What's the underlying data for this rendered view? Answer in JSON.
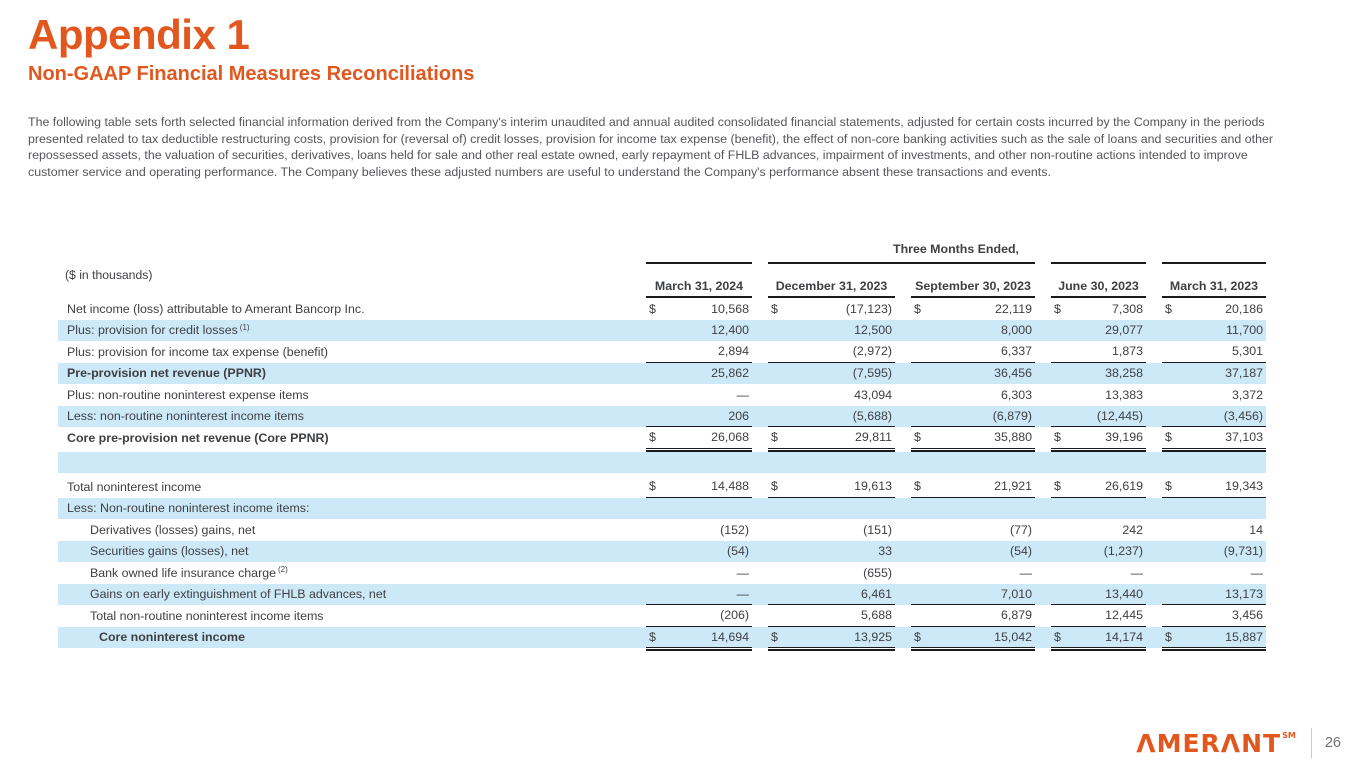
{
  "page": {
    "title": "Appendix 1",
    "subtitle": "Non-GAAP Financial Measures Reconciliations",
    "intro": "The following table sets forth selected financial information derived from the Company's interim unaudited and annual audited consolidated financial statements, adjusted for certain costs incurred by the Company in the periods presented related to tax deductible restructuring costs, provision for (reversal of) credit losses, provision for income tax expense (benefit), the effect of non-core banking activities such as the sale of loans and securities and other repossessed assets, the valuation of securities, derivatives, loans held for sale and other real estate owned, early repayment of FHLB advances, impairment of investments, and other non-routine actions intended to improve customer service and operating performance. The Company believes these adjusted numbers are useful to understand the Company's performance absent these transactions and events."
  },
  "table": {
    "units_label": "($ in thousands)",
    "group_header": "Three Months Ended,",
    "columns": [
      "March 31, 2024",
      "December 31, 2023",
      "September 30, 2023",
      "June 30, 2023",
      "March 31, 2023"
    ],
    "rows": [
      {
        "label": "Net income (loss) attributable to Amerant Bancorp Inc.",
        "shade": "white",
        "dollar": true,
        "values": [
          "10,568",
          "(17,123)",
          "22,119",
          "7,308",
          "20,186"
        ]
      },
      {
        "label": "Plus: provision for credit losses",
        "sup": "(1)",
        "shade": "blue",
        "values": [
          "12,400",
          "12,500",
          "8,000",
          "29,077",
          "11,700"
        ]
      },
      {
        "label": "Plus: provision for income tax expense (benefit)",
        "shade": "white",
        "border": "bottom",
        "values": [
          "2,894",
          "(2,972)",
          "6,337",
          "1,873",
          "5,301"
        ]
      },
      {
        "label": "Pre-provision net revenue (PPNR)",
        "bold": true,
        "shade": "blue",
        "values": [
          "25,862",
          "(7,595)",
          "36,456",
          "38,258",
          "37,187"
        ]
      },
      {
        "label": "Plus: non-routine noninterest expense items",
        "shade": "white",
        "values": [
          "—",
          "43,094",
          "6,303",
          "13,383",
          "3,372"
        ]
      },
      {
        "label": "Less: non-routine noninterest income items",
        "shade": "blue",
        "border": "bottom",
        "values": [
          "206",
          "(5,688)",
          "(6,879)",
          "(12,445)",
          "(3,456)"
        ]
      },
      {
        "label": "Core pre-provision net revenue (Core PPNR)",
        "bold": true,
        "shade": "white",
        "dollar": true,
        "border": "double",
        "values": [
          "26,068",
          "29,811",
          "35,880",
          "39,196",
          "37,103"
        ]
      },
      {
        "blank": true,
        "shade": "blue"
      },
      {
        "label": "Total noninterest income",
        "shade": "white",
        "dollar": true,
        "border": "bottom",
        "values": [
          "14,488",
          "19,613",
          "21,921",
          "26,619",
          "19,343"
        ]
      },
      {
        "label": "Less: Non-routine noninterest income items:",
        "shade": "blue",
        "values": []
      },
      {
        "label": "Derivatives (losses) gains, net",
        "indent": 1,
        "shade": "white",
        "values": [
          "(152)",
          "(151)",
          "(77)",
          "242",
          "14"
        ]
      },
      {
        "label": "Securities gains (losses), net",
        "indent": 1,
        "shade": "blue",
        "values": [
          "(54)",
          "33",
          "(54)",
          "(1,237)",
          "(9,731)"
        ]
      },
      {
        "label": "Bank owned life insurance charge",
        "sup": "(2)",
        "indent": 1,
        "shade": "white",
        "values": [
          "—",
          "(655)",
          "—",
          "—",
          "—"
        ]
      },
      {
        "label": "Gains on early extinguishment of FHLB advances, net",
        "indent": 1,
        "shade": "blue",
        "border": "bottom",
        "values": [
          "—",
          "6,461",
          "7,010",
          "13,440",
          "13,173"
        ]
      },
      {
        "label": "Total non-routine noninterest income items",
        "indent": 1,
        "shade": "white",
        "border": "bottom",
        "values": [
          "(206)",
          "5,688",
          "6,879",
          "12,445",
          "3,456"
        ]
      },
      {
        "label": "Core noninterest income",
        "bold": true,
        "indent": 2,
        "shade": "blue",
        "dollar": true,
        "border": "double",
        "values": [
          "14,694",
          "13,925",
          "15,042",
          "14,174",
          "15,887"
        ]
      }
    ]
  },
  "footer": {
    "brand": "ΛMERΛNT",
    "brand_sup": "SM",
    "page_number": "26"
  },
  "colors": {
    "accent_orange": "#E2571E",
    "row_blue": "#CDE9F8",
    "body_text": "#55565A",
    "table_text": "#3E3F42"
  }
}
